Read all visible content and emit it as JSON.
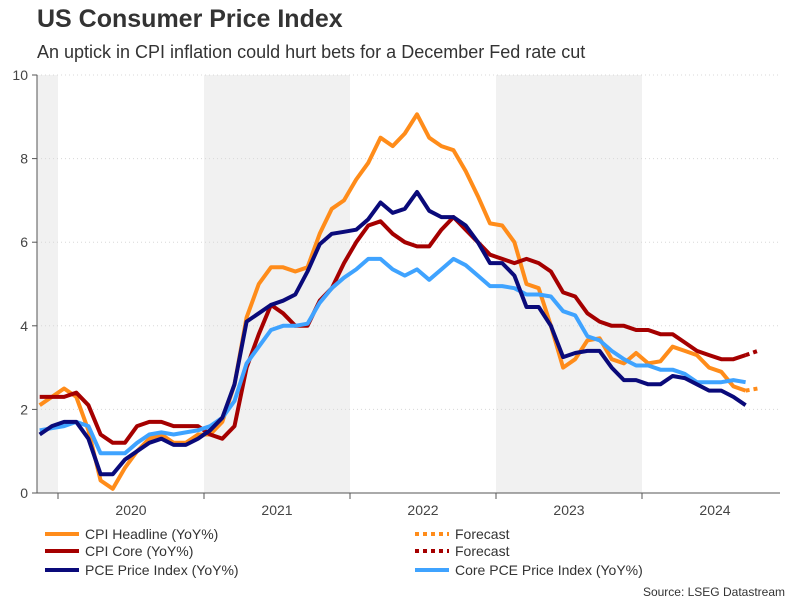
{
  "chart_data": {
    "type": "line",
    "title": "US Consumer Price Index",
    "subtitle": "An uptick in CPI inflation could hurt bets for a December Fed rate cut",
    "source": "Source: LSEG Datastream",
    "ylim": [
      0,
      10
    ],
    "yticks": [
      "0",
      "2",
      "4",
      "6",
      "8",
      "10"
    ],
    "xticks": [
      "2020",
      "2021",
      "2022",
      "2023",
      "2024"
    ],
    "grid": true,
    "legend_position": "bottom",
    "shaded_years": [
      "2019",
      "2021",
      "2023"
    ],
    "x": [
      "2019-11",
      "2019-12",
      "2020-01",
      "2020-02",
      "2020-03",
      "2020-04",
      "2020-05",
      "2020-06",
      "2020-07",
      "2020-08",
      "2020-09",
      "2020-10",
      "2020-11",
      "2020-12",
      "2021-01",
      "2021-02",
      "2021-03",
      "2021-04",
      "2021-05",
      "2021-06",
      "2021-07",
      "2021-08",
      "2021-09",
      "2021-10",
      "2021-11",
      "2021-12",
      "2022-01",
      "2022-02",
      "2022-03",
      "2022-04",
      "2022-05",
      "2022-06",
      "2022-07",
      "2022-08",
      "2022-09",
      "2022-10",
      "2022-11",
      "2022-12",
      "2023-01",
      "2023-02",
      "2023-03",
      "2023-04",
      "2023-05",
      "2023-06",
      "2023-07",
      "2023-08",
      "2023-09",
      "2023-10",
      "2023-11",
      "2023-12",
      "2024-01",
      "2024-02",
      "2024-03",
      "2024-04",
      "2024-05",
      "2024-06",
      "2024-07",
      "2024-08",
      "2024-09"
    ],
    "series": [
      {
        "name": "CPI Headline (YoY%)",
        "color": "#ff8c1a",
        "values": [
          2.1,
          2.3,
          2.5,
          2.3,
          1.5,
          0.3,
          0.1,
          0.6,
          1.0,
          1.3,
          1.4,
          1.2,
          1.2,
          1.4,
          1.4,
          1.7,
          2.6,
          4.2,
          5.0,
          5.4,
          5.4,
          5.3,
          5.4,
          6.2,
          6.8,
          7.0,
          7.5,
          7.9,
          8.5,
          8.3,
          8.6,
          9.06,
          8.5,
          8.3,
          8.2,
          7.7,
          7.1,
          6.45,
          6.4,
          6.0,
          5.0,
          4.9,
          4.0,
          3.0,
          3.2,
          3.65,
          3.7,
          3.2,
          3.1,
          3.35,
          3.1,
          3.15,
          3.5,
          3.4,
          3.3,
          3.0,
          2.9,
          2.55,
          2.45
        ],
        "forecast": {
          "name": "Forecast",
          "x": [
            "2024-09",
            "2024-10"
          ],
          "values": [
            2.45,
            2.5
          ]
        }
      },
      {
        "name": "CPI Core (YoY%)",
        "color": "#a50000",
        "values": [
          2.3,
          2.3,
          2.3,
          2.4,
          2.1,
          1.4,
          1.2,
          1.2,
          1.6,
          1.7,
          1.7,
          1.6,
          1.6,
          1.6,
          1.4,
          1.3,
          1.6,
          3.0,
          3.8,
          4.5,
          4.3,
          4.0,
          4.0,
          4.6,
          4.9,
          5.5,
          6.0,
          6.4,
          6.5,
          6.2,
          6.0,
          5.9,
          5.9,
          6.3,
          6.6,
          6.3,
          6.0,
          5.7,
          5.6,
          5.5,
          5.6,
          5.5,
          5.3,
          4.8,
          4.7,
          4.3,
          4.1,
          4.0,
          4.0,
          3.9,
          3.9,
          3.8,
          3.8,
          3.6,
          3.4,
          3.3,
          3.2,
          3.2,
          3.3
        ],
        "forecast": {
          "name": "Forecast",
          "x": [
            "2024-09",
            "2024-10"
          ],
          "values": [
            3.3,
            3.4
          ]
        }
      },
      {
        "name": "PCE Price Index (YoY%)",
        "color": "#0a0a7a",
        "values": [
          1.4,
          1.6,
          1.7,
          1.7,
          1.3,
          0.45,
          0.45,
          0.8,
          1.0,
          1.2,
          1.3,
          1.15,
          1.15,
          1.3,
          1.5,
          1.8,
          2.6,
          4.1,
          4.3,
          4.5,
          4.6,
          4.75,
          5.3,
          5.95,
          6.2,
          6.25,
          6.3,
          6.55,
          6.95,
          6.7,
          6.8,
          7.2,
          6.75,
          6.6,
          6.6,
          6.4,
          6.0,
          5.5,
          5.5,
          5.2,
          4.45,
          4.45,
          4.0,
          3.25,
          3.35,
          3.4,
          3.4,
          3.0,
          2.7,
          2.7,
          2.6,
          2.6,
          2.8,
          2.75,
          2.6,
          2.45,
          2.45,
          2.3,
          2.1
        ]
      },
      {
        "name": "Core PCE Price Index (YoY%)",
        "color": "#3fa3ff",
        "values": [
          1.5,
          1.55,
          1.6,
          1.7,
          1.6,
          0.95,
          0.95,
          0.95,
          1.2,
          1.4,
          1.45,
          1.4,
          1.45,
          1.5,
          1.6,
          1.8,
          2.2,
          3.1,
          3.5,
          3.9,
          4.0,
          4.0,
          4.05,
          4.55,
          4.9,
          5.15,
          5.35,
          5.6,
          5.6,
          5.35,
          5.2,
          5.35,
          5.1,
          5.35,
          5.6,
          5.45,
          5.2,
          4.95,
          4.95,
          4.9,
          4.75,
          4.75,
          4.7,
          4.35,
          4.25,
          3.75,
          3.65,
          3.4,
          3.2,
          3.05,
          3.05,
          2.95,
          2.95,
          2.85,
          2.65,
          2.65,
          2.65,
          2.7,
          2.65
        ]
      }
    ]
  }
}
